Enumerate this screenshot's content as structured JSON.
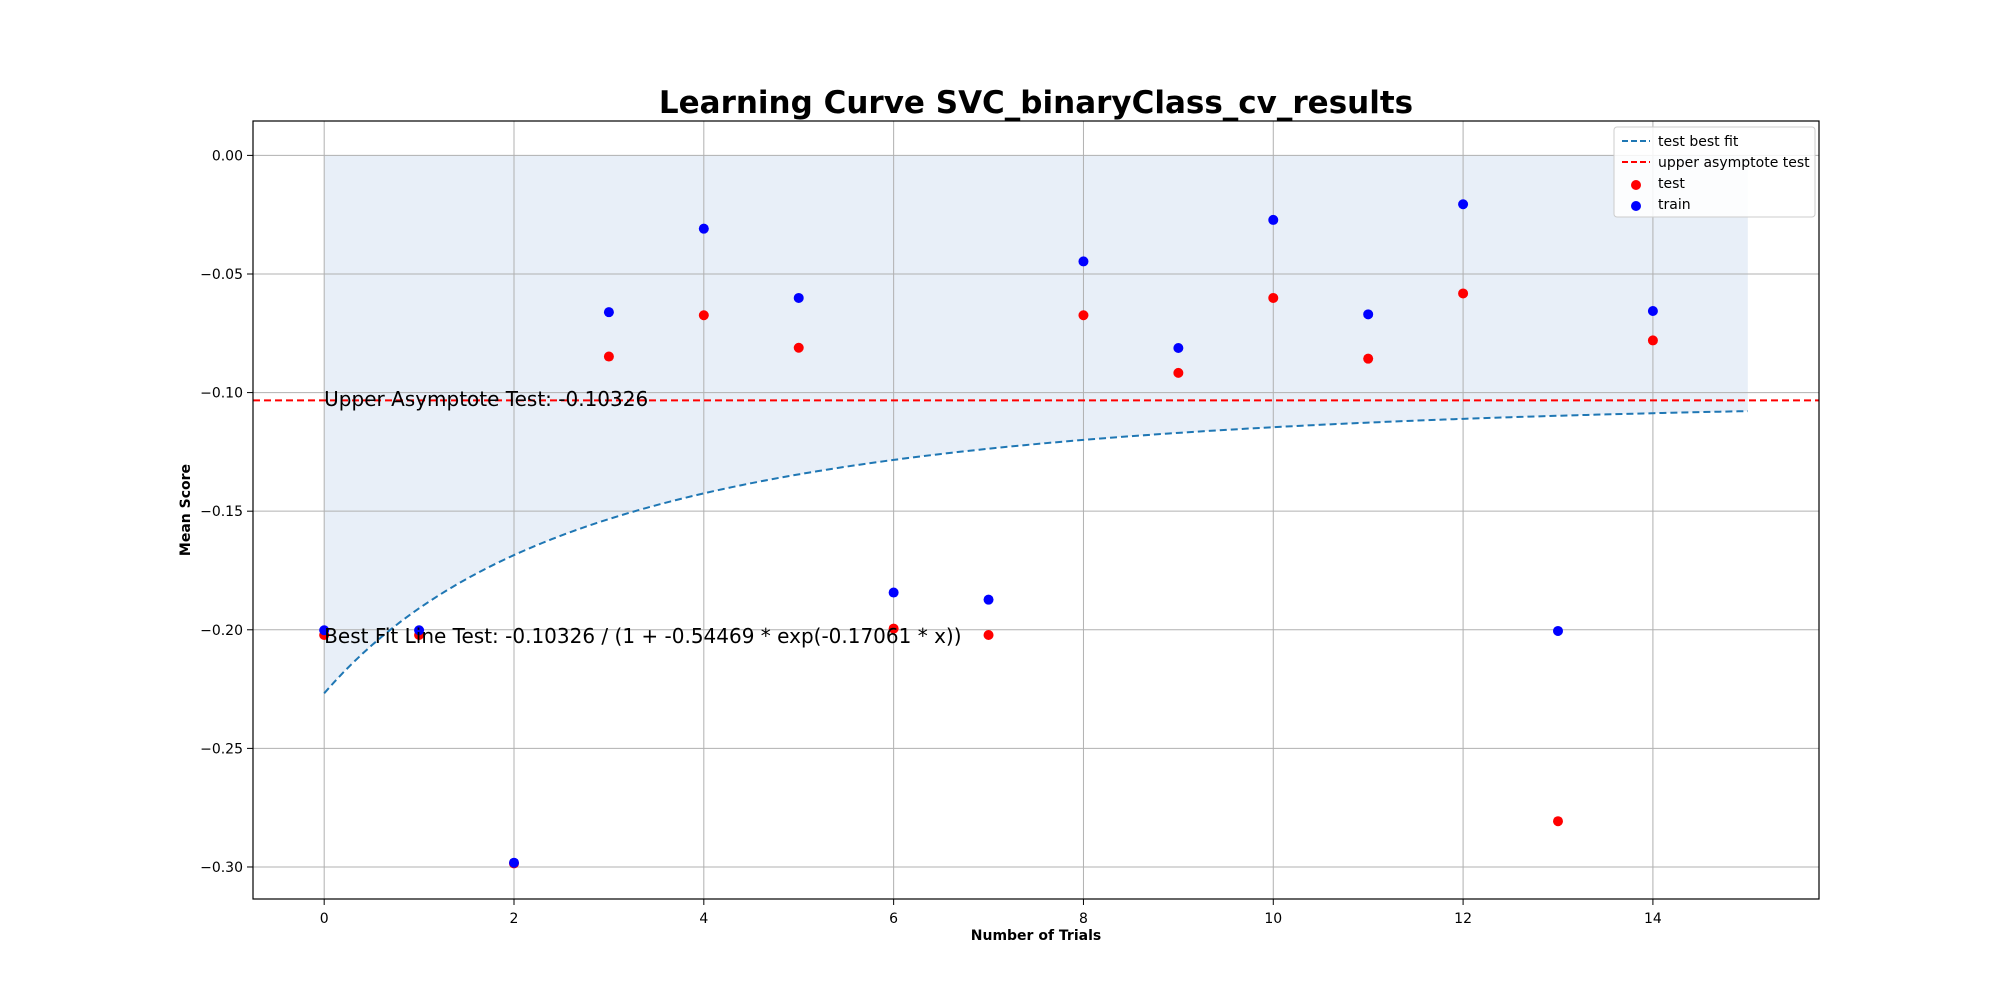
{
  "chart_data": {
    "type": "scatter",
    "title": "Learning Curve SVC_binaryClass_cv_results",
    "xlabel": "Number of Trials",
    "ylabel": "Mean Score",
    "xlim": [
      -0.75,
      15.75
    ],
    "ylim": [
      -0.3135,
      0.0145
    ],
    "xticks": [
      0,
      2,
      4,
      6,
      8,
      10,
      12,
      14
    ],
    "yticks": [
      0.0,
      -0.05,
      -0.1,
      -0.15,
      -0.2,
      -0.25,
      -0.3
    ],
    "xtick_labels": [
      "0",
      "2",
      "4",
      "6",
      "8",
      "10",
      "12",
      "14"
    ],
    "ytick_labels": [
      "0.00",
      "−0.05",
      "−0.10",
      "−0.15",
      "−0.20",
      "−0.25",
      "−0.30"
    ],
    "grid": true,
    "legend_position": "top-right",
    "colors": {
      "test": "#ff0000",
      "train": "#0000ff",
      "fit": "#1f77b4",
      "asymptote": "#ff0000",
      "fill": "#dbe7f4"
    },
    "series": [
      {
        "name": "test",
        "kind": "scatter",
        "x": [
          0,
          1,
          2,
          3,
          4,
          5,
          6,
          7,
          8,
          9,
          10,
          11,
          12,
          13,
          14
        ],
        "y": [
          -0.2022,
          -0.2022,
          -0.2985,
          -0.0848,
          -0.0674,
          -0.0811,
          -0.1995,
          -0.2022,
          -0.0674,
          -0.0917,
          -0.0601,
          -0.0857,
          -0.0582,
          -0.2807,
          -0.078
        ]
      },
      {
        "name": "train",
        "kind": "scatter",
        "x": [
          0,
          1,
          2,
          3,
          4,
          5,
          6,
          7,
          8,
          9,
          10,
          11,
          12,
          13,
          14
        ],
        "y": [
          -0.2002,
          -0.2002,
          -0.2982,
          -0.0661,
          -0.0309,
          -0.0601,
          -0.1843,
          -0.1873,
          -0.0447,
          -0.0812,
          -0.0272,
          -0.067,
          -0.0206,
          -0.2005,
          -0.0656
        ]
      }
    ],
    "fit_line": {
      "name": "test best fit",
      "formula": "-0.10326 / (1 + -0.54469 * exp(-0.17061 * x))",
      "a": -0.10326,
      "b": -0.54469,
      "c": -0.17061,
      "x_range": [
        0,
        15
      ]
    },
    "asymptote": {
      "name": "upper asymptote test",
      "value": -0.10326
    },
    "fill_region": {
      "x_range": [
        0,
        15
      ],
      "upper": 0.0
    },
    "annotations": [
      {
        "id": "upper",
        "text": "Upper Asymptote Test: -0.10326",
        "x": 0,
        "y": -0.1026
      },
      {
        "id": "bestfit",
        "text": "Best Fit Line Test: -0.10326 / (1 + -0.54469 * exp(-0.17061 * x))",
        "x": 0,
        "y": -0.2026
      }
    ],
    "legend": [
      {
        "label": "test best fit",
        "marker": "dashed-line",
        "color": "#1f77b4"
      },
      {
        "label": "upper asymptote test",
        "marker": "dashed-line",
        "color": "#ff0000"
      },
      {
        "label": "test",
        "marker": "dot",
        "color": "#ff0000"
      },
      {
        "label": "train",
        "marker": "dot",
        "color": "#0000ff"
      }
    ]
  }
}
